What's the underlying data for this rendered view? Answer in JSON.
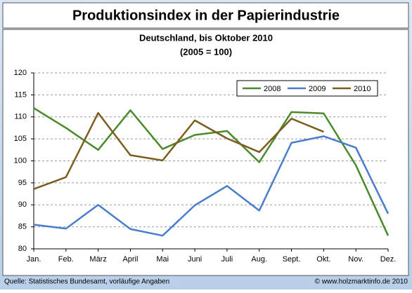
{
  "chart_data": {
    "type": "line",
    "title": "Produktionsindex in der Papierindustrie",
    "subtitle": [
      "Deutschland, bis Oktober 2010",
      "(2005 = 100)"
    ],
    "categories": [
      "Jan.",
      "Feb.",
      "März",
      "April",
      "Mai",
      "Juni",
      "Juli",
      "Aug.",
      "Sept.",
      "Okt.",
      "Nov.",
      "Dez."
    ],
    "series": [
      {
        "name": "2008",
        "color": "#4b8a2b",
        "values": [
          112,
          107.5,
          102.5,
          111.5,
          102.7,
          105.9,
          106.8,
          99.7,
          111.1,
          110.8,
          99,
          83
        ]
      },
      {
        "name": "2009",
        "color": "#4a7dcb",
        "values": [
          85.5,
          84.6,
          90,
          84.5,
          83,
          89.9,
          94.3,
          88.7,
          104.1,
          105.6,
          103,
          88
        ]
      },
      {
        "name": "2010",
        "color": "#7b5d1f",
        "values": [
          93.6,
          96.3,
          110.9,
          101.3,
          100.1,
          109.2,
          105.1,
          102,
          109.6,
          106.6,
          null,
          null
        ]
      }
    ],
    "ylim": [
      80,
      120
    ],
    "yticks": [
      80,
      85,
      90,
      95,
      100,
      105,
      110,
      115,
      120
    ],
    "grid": true,
    "legend": "top-right",
    "source": "Quelle: Statistisches Bundesamt, vorläufige Angaben",
    "copyright": "© www.holzmarktinfo.de 2010"
  }
}
